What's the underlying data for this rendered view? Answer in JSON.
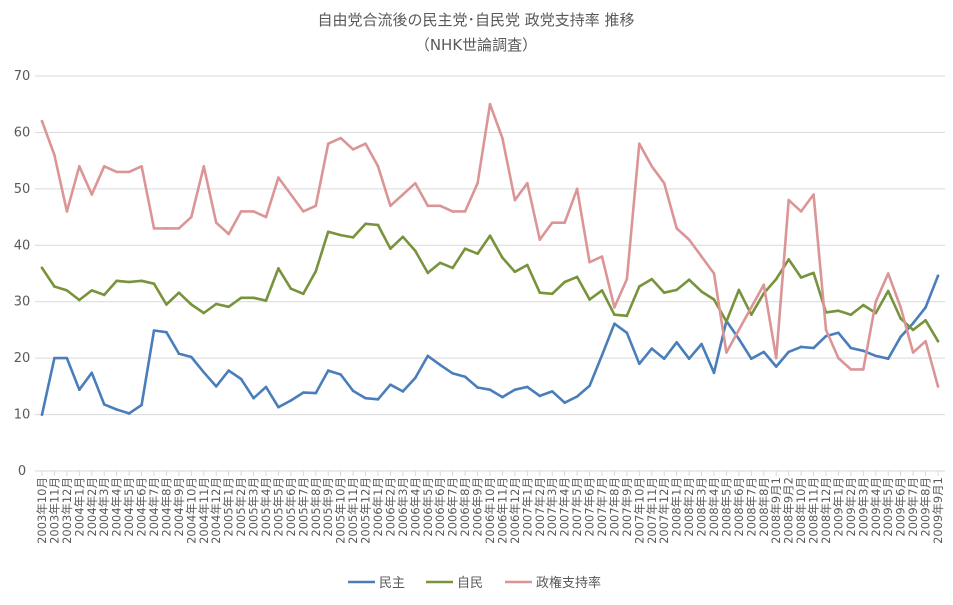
{
  "chart_data": {
    "type": "line",
    "title": "自由党合流後の民主党･自民党 政党支持率 推移",
    "subtitle": "（NHK世論調査）",
    "xlabel": "",
    "ylabel": "",
    "ylim": [
      0,
      70
    ],
    "yticks": [
      0,
      10,
      20,
      30,
      40,
      50,
      60,
      70
    ],
    "grid": true,
    "legend_position": "bottom",
    "categories": [
      "2003年10月",
      "2003年11月",
      "2003年12月",
      "2004年1月",
      "2004年2月",
      "2004年3月",
      "2004年4月",
      "2004年5月",
      "2004年6月",
      "2004年7月",
      "2004年8月",
      "2004年9月",
      "2004年10月",
      "2004年11月",
      "2004年12月",
      "2005年1月",
      "2005年2月",
      "2005年3月",
      "2005年4月",
      "2005年5月",
      "2005年6月",
      "2005年7月",
      "2005年8月",
      "2005年9月",
      "2005年10月",
      "2005年11月",
      "2005年12月",
      "2006年1月",
      "2006年2月",
      "2006年3月",
      "2006年4月",
      "2006年5月",
      "2006年6月",
      "2006年7月",
      "2006年8月",
      "2006年9月",
      "2006年10月",
      "2006年11月",
      "2006年12月",
      "2007年1月",
      "2007年2月",
      "2007年3月",
      "2007年4月",
      "2007年5月",
      "2007年6月",
      "2007年7月",
      "2007年8月",
      "2007年9月",
      "2007年10月",
      "2007年11月",
      "2007年12月",
      "2008年1月",
      "2008年2月",
      "2008年3月",
      "2008年4月",
      "2008年5月",
      "2008年6月",
      "2008年7月",
      "2008年8月",
      "2008年9月1",
      "2008年9月2",
      "2008年10月",
      "2008年11月",
      "2008年12月",
      "2009年1月",
      "2009年2月",
      "2009年3月",
      "2009年4月",
      "2009年5月",
      "2009年6月",
      "2009年7月",
      "2009年8月",
      "2009年9月1"
    ],
    "series": [
      {
        "name": "民主",
        "color": "#4a7ebb",
        "values": [
          10,
          20,
          20,
          14.4,
          17.4,
          11.8,
          10.9,
          10.2,
          11.7,
          24.9,
          24.6,
          20.8,
          20.2,
          17.5,
          15,
          17.8,
          16.3,
          12.9,
          14.9,
          11.3,
          12.5,
          13.9,
          13.8,
          17.8,
          17.1,
          14.2,
          12.9,
          12.7,
          15.3,
          14.1,
          16.5,
          20.4,
          18.8,
          17.3,
          16.7,
          14.8,
          14.4,
          13.1,
          14.4,
          14.9,
          13.3,
          14.1,
          12.1,
          13.2,
          15.1,
          20.5,
          26.1,
          24.5,
          19,
          21.7,
          19.9,
          22.8,
          19.9,
          22.5,
          17.4,
          26.6,
          23.4,
          19.9,
          21.1,
          18.5,
          21.1,
          22,
          21.8,
          23.9,
          24.5,
          21.8,
          21.3,
          20.4,
          19.9,
          23.8,
          26.2,
          29,
          34.6
        ]
      },
      {
        "name": "自民",
        "color": "#77933c",
        "values": [
          36,
          32.7,
          32,
          30.3,
          32,
          31.2,
          33.7,
          33.5,
          33.7,
          33.2,
          29.5,
          31.6,
          29.5,
          28,
          29.6,
          29.1,
          30.7,
          30.7,
          30.2,
          35.9,
          32.3,
          31.4,
          35.4,
          42.4,
          41.8,
          41.4,
          43.8,
          43.6,
          39.4,
          41.5,
          39,
          35.1,
          36.9,
          36,
          39.4,
          38.5,
          41.7,
          37.8,
          35.3,
          36.5,
          31.6,
          31.4,
          33.5,
          34.4,
          30.4,
          32,
          27.7,
          27.5,
          32.7,
          34,
          31.6,
          32.1,
          33.9,
          31.8,
          30.4,
          26.5,
          32.1,
          27.7,
          31.5,
          34,
          37.5,
          34.3,
          35.1,
          28.1,
          28.4,
          27.7,
          29.4,
          28,
          31.9,
          27,
          25,
          26.7,
          23
        ]
      },
      {
        "name": "政権支持率",
        "color": "#dc9596",
        "values": [
          62,
          56,
          46,
          54,
          49,
          54,
          53,
          53,
          54,
          43,
          43,
          43,
          45,
          54,
          44,
          42,
          46,
          46,
          45,
          52,
          49,
          46,
          47,
          58,
          59,
          57,
          58,
          54,
          47,
          49,
          51,
          47,
          47,
          46,
          46,
          51,
          65,
          59,
          48,
          51,
          41,
          44,
          44,
          50,
          37,
          38,
          29,
          34,
          58,
          54,
          51,
          43,
          41,
          38,
          35,
          21,
          25,
          29,
          33,
          20,
          48,
          46,
          49,
          25,
          20,
          18,
          18,
          30,
          35,
          29,
          21,
          23,
          15
        ]
      }
    ]
  }
}
